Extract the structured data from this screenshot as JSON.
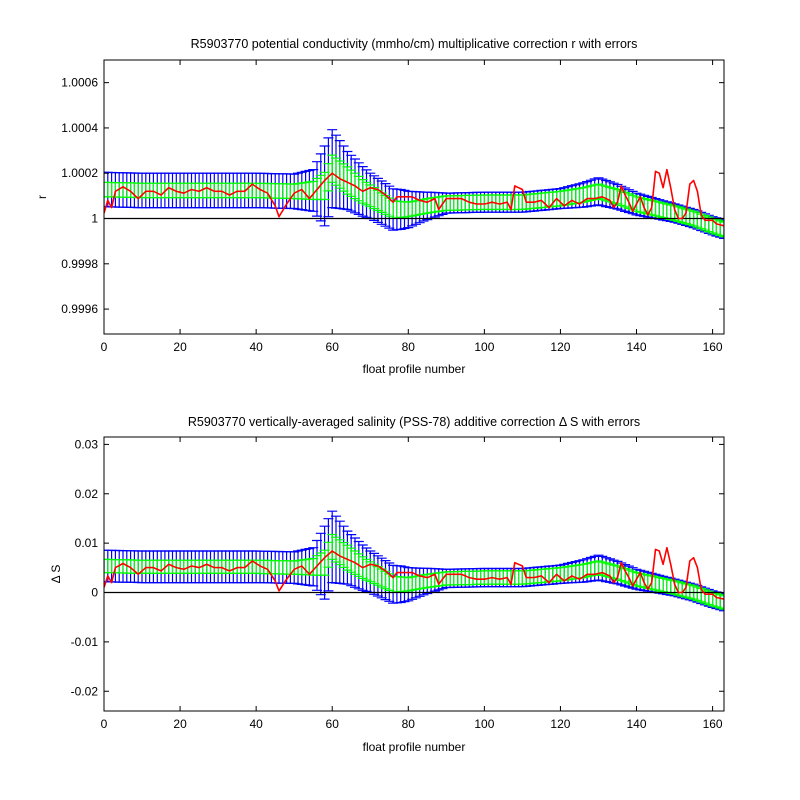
{
  "colors": {
    "outer_error": "#0000ff",
    "inner_error": "#00ff00",
    "correction_line": "#ff0000",
    "zero_line": "#000000",
    "axes": "#000000",
    "background": "#ffffff"
  },
  "chart_data": [
    {
      "type": "line",
      "title": "R5903770 potential conductivity (mmho/cm) multiplicative correction r with errors",
      "xlabel": "float profile number",
      "ylabel": "r",
      "xlim": [
        0,
        163
      ],
      "ylim": [
        0.99949,
        1.0007
      ],
      "xticks": [
        0,
        20,
        40,
        60,
        80,
        100,
        120,
        140,
        160
      ],
      "xtick_labels": [
        "0",
        "20",
        "40",
        "60",
        "80",
        "100",
        "120",
        "140",
        "160"
      ],
      "yticks": [
        0.9996,
        0.9998,
        1.0,
        1.0002,
        1.0004,
        1.0006
      ],
      "ytick_labels": [
        "0.9996",
        "0.9998",
        "1",
        "1.0002",
        "1.0004",
        "1.0006"
      ],
      "reference_line": 1.0,
      "grid": false,
      "legend": "none",
      "mapping": {
        "offset": 1.0,
        "scale": 4e-05
      },
      "fit_knots": [
        [
          0,
          3.2
        ],
        [
          10,
          3.1
        ],
        [
          20,
          3.1
        ],
        [
          30,
          3.1
        ],
        [
          40,
          3.1
        ],
        [
          50,
          3.0
        ],
        [
          55,
          3.1
        ],
        [
          58,
          3.6
        ],
        [
          60,
          5.5
        ],
        [
          64,
          4.2
        ],
        [
          68,
          3.0
        ],
        [
          72,
          2.0
        ],
        [
          76,
          1.0
        ],
        [
          80,
          1.0
        ],
        [
          85,
          1.4
        ],
        [
          90,
          1.7
        ],
        [
          100,
          1.8
        ],
        [
          110,
          1.8
        ],
        [
          120,
          2.2
        ],
        [
          126,
          2.6
        ],
        [
          130,
          3.0
        ],
        [
          135,
          2.4
        ],
        [
          140,
          1.6
        ],
        [
          145,
          1.1
        ],
        [
          150,
          0.6
        ],
        [
          155,
          0.0
        ],
        [
          160,
          -0.8
        ],
        [
          163,
          -1.2
        ]
      ],
      "inner_err_knots": [
        [
          0,
          0.8
        ],
        [
          50,
          0.8
        ],
        [
          55,
          1.0
        ],
        [
          58,
          1.5
        ],
        [
          60,
          1.5
        ],
        [
          64,
          1.5
        ],
        [
          70,
          1.2
        ],
        [
          80,
          0.8
        ],
        [
          120,
          0.8
        ],
        [
          163,
          0.8
        ]
      ],
      "outer_err_knots": [
        [
          0,
          1.9
        ],
        [
          50,
          1.9
        ],
        [
          55,
          2.3
        ],
        [
          58,
          4.4
        ],
        [
          60,
          4.3
        ],
        [
          64,
          3.2
        ],
        [
          70,
          2.5
        ],
        [
          78,
          2.2
        ],
        [
          84,
          1.6
        ],
        [
          90,
          1.1
        ],
        [
          120,
          1.1
        ],
        [
          130,
          1.5
        ],
        [
          140,
          1.2
        ],
        [
          150,
          1.0
        ],
        [
          163,
          1.0
        ]
      ],
      "obs_knots": [
        [
          0,
          0.6
        ],
        [
          1,
          2.0
        ],
        [
          2,
          1.2
        ],
        [
          3,
          3.0
        ],
        [
          5,
          3.5
        ],
        [
          7,
          3.0
        ],
        [
          9,
          2.2
        ],
        [
          11,
          3.0
        ],
        [
          13,
          3.0
        ],
        [
          15,
          2.6
        ],
        [
          17,
          3.4
        ],
        [
          19,
          3.0
        ],
        [
          21,
          2.8
        ],
        [
          23,
          3.2
        ],
        [
          25,
          3.0
        ],
        [
          27,
          3.4
        ],
        [
          29,
          3.0
        ],
        [
          31,
          3.0
        ],
        [
          33,
          2.6
        ],
        [
          35,
          3.0
        ],
        [
          37,
          3.0
        ],
        [
          39,
          3.8
        ],
        [
          41,
          3.2
        ],
        [
          43,
          2.8
        ],
        [
          45,
          1.4
        ],
        [
          46,
          0.2
        ],
        [
          48,
          1.6
        ],
        [
          50,
          2.8
        ],
        [
          52,
          3.2
        ],
        [
          54,
          2.2
        ],
        [
          56,
          3.2
        ],
        [
          58,
          4.2
        ],
        [
          60,
          5.0
        ],
        [
          62,
          4.4
        ],
        [
          64,
          4.0
        ],
        [
          66,
          3.6
        ],
        [
          68,
          3.0
        ],
        [
          70,
          3.4
        ],
        [
          72,
          3.2
        ],
        [
          74,
          2.6
        ],
        [
          76,
          1.8
        ],
        [
          77,
          2.4
        ],
        [
          79,
          2.4
        ],
        [
          81,
          2.4
        ],
        [
          83,
          2.0
        ],
        [
          85,
          1.8
        ],
        [
          87,
          2.2
        ],
        [
          88,
          1.0
        ],
        [
          90,
          2.2
        ],
        [
          92,
          2.2
        ],
        [
          94,
          2.2
        ],
        [
          96,
          1.8
        ],
        [
          98,
          1.6
        ],
        [
          100,
          1.6
        ],
        [
          102,
          1.8
        ],
        [
          104,
          1.6
        ],
        [
          106,
          1.8
        ],
        [
          107,
          1.0
        ],
        [
          108,
          3.6
        ],
        [
          110,
          3.2
        ],
        [
          111,
          1.8
        ],
        [
          113,
          1.8
        ],
        [
          115,
          2.0
        ],
        [
          117,
          1.2
        ],
        [
          119,
          2.2
        ],
        [
          121,
          1.4
        ],
        [
          123,
          2.0
        ],
        [
          125,
          1.6
        ],
        [
          127,
          2.2
        ],
        [
          129,
          2.2
        ],
        [
          131,
          2.4
        ],
        [
          133,
          2.0
        ],
        [
          134,
          1.2
        ],
        [
          135,
          1.8
        ],
        [
          136,
          3.6
        ],
        [
          137,
          2.6
        ],
        [
          138,
          1.8
        ],
        [
          139,
          0.8
        ],
        [
          141,
          2.4
        ],
        [
          142,
          1.2
        ],
        [
          143,
          0.4
        ],
        [
          144,
          1.2
        ],
        [
          145,
          5.2
        ],
        [
          146,
          5.0
        ],
        [
          147,
          3.4
        ],
        [
          148,
          5.4
        ],
        [
          149,
          3.4
        ],
        [
          150,
          1.0
        ],
        [
          151,
          0.0
        ],
        [
          152,
          0.0
        ],
        [
          153,
          0.6
        ],
        [
          154,
          3.8
        ],
        [
          155,
          4.2
        ],
        [
          156,
          3.0
        ],
        [
          157,
          0.4
        ],
        [
          158,
          -0.2
        ],
        [
          159,
          -0.2
        ],
        [
          160,
          -0.2
        ],
        [
          161,
          -0.6
        ],
        [
          162,
          -0.7
        ],
        [
          163,
          -0.8
        ]
      ]
    },
    {
      "type": "line",
      "title": "R5903770 vertically-averaged salinity (PSS-78) additive correction Δ S with errors",
      "xlabel": "float profile number",
      "ylabel": "Δ S",
      "xlim": [
        0,
        163
      ],
      "ylim": [
        -0.024,
        0.0315
      ],
      "xticks": [
        0,
        20,
        40,
        60,
        80,
        100,
        120,
        140,
        160
      ],
      "xtick_labels": [
        "0",
        "20",
        "40",
        "60",
        "80",
        "100",
        "120",
        "140",
        "160"
      ],
      "yticks": [
        -0.02,
        -0.01,
        0.0,
        0.01,
        0.02,
        0.03
      ],
      "ytick_labels": [
        "-0.02",
        "-0.01",
        "0",
        "0.01",
        "0.02",
        "0.03"
      ],
      "reference_line": 0.0,
      "grid": false,
      "legend": "none",
      "mapping": {
        "offset": 0.0,
        "scale": 0.00168
      },
      "fit_knots": [
        [
          0,
          3.2
        ],
        [
          10,
          3.1
        ],
        [
          20,
          3.1
        ],
        [
          30,
          3.1
        ],
        [
          40,
          3.1
        ],
        [
          50,
          3.0
        ],
        [
          55,
          3.1
        ],
        [
          58,
          3.6
        ],
        [
          60,
          5.5
        ],
        [
          64,
          4.2
        ],
        [
          68,
          3.0
        ],
        [
          72,
          2.0
        ],
        [
          76,
          1.0
        ],
        [
          80,
          1.0
        ],
        [
          85,
          1.4
        ],
        [
          90,
          1.7
        ],
        [
          100,
          1.8
        ],
        [
          110,
          1.8
        ],
        [
          120,
          2.2
        ],
        [
          126,
          2.6
        ],
        [
          130,
          3.0
        ],
        [
          135,
          2.4
        ],
        [
          140,
          1.6
        ],
        [
          145,
          1.1
        ],
        [
          150,
          0.6
        ],
        [
          155,
          0.0
        ],
        [
          160,
          -0.8
        ],
        [
          163,
          -1.2
        ]
      ],
      "inner_err_knots": [
        [
          0,
          0.8
        ],
        [
          50,
          0.8
        ],
        [
          55,
          1.0
        ],
        [
          58,
          1.5
        ],
        [
          60,
          1.5
        ],
        [
          64,
          1.5
        ],
        [
          70,
          1.2
        ],
        [
          80,
          0.8
        ],
        [
          120,
          0.8
        ],
        [
          163,
          0.8
        ]
      ],
      "outer_err_knots": [
        [
          0,
          1.9
        ],
        [
          50,
          1.9
        ],
        [
          55,
          2.3
        ],
        [
          58,
          4.4
        ],
        [
          60,
          4.3
        ],
        [
          64,
          3.2
        ],
        [
          70,
          2.5
        ],
        [
          78,
          2.2
        ],
        [
          84,
          1.6
        ],
        [
          90,
          1.1
        ],
        [
          120,
          1.1
        ],
        [
          130,
          1.5
        ],
        [
          140,
          1.2
        ],
        [
          150,
          1.0
        ],
        [
          163,
          1.0
        ]
      ],
      "obs_knots": [
        [
          0,
          0.6
        ],
        [
          1,
          2.0
        ],
        [
          2,
          1.2
        ],
        [
          3,
          3.0
        ],
        [
          5,
          3.5
        ],
        [
          7,
          3.0
        ],
        [
          9,
          2.2
        ],
        [
          11,
          3.0
        ],
        [
          13,
          3.0
        ],
        [
          15,
          2.6
        ],
        [
          17,
          3.4
        ],
        [
          19,
          3.0
        ],
        [
          21,
          2.8
        ],
        [
          23,
          3.2
        ],
        [
          25,
          3.0
        ],
        [
          27,
          3.4
        ],
        [
          29,
          3.0
        ],
        [
          31,
          3.0
        ],
        [
          33,
          2.6
        ],
        [
          35,
          3.0
        ],
        [
          37,
          3.0
        ],
        [
          39,
          3.8
        ],
        [
          41,
          3.2
        ],
        [
          43,
          2.8
        ],
        [
          45,
          1.4
        ],
        [
          46,
          0.2
        ],
        [
          48,
          1.6
        ],
        [
          50,
          2.8
        ],
        [
          52,
          3.2
        ],
        [
          54,
          2.2
        ],
        [
          56,
          3.2
        ],
        [
          58,
          4.2
        ],
        [
          60,
          5.0
        ],
        [
          62,
          4.4
        ],
        [
          64,
          4.0
        ],
        [
          66,
          3.6
        ],
        [
          68,
          3.0
        ],
        [
          70,
          3.4
        ],
        [
          72,
          3.2
        ],
        [
          74,
          2.6
        ],
        [
          76,
          1.8
        ],
        [
          77,
          2.4
        ],
        [
          79,
          2.4
        ],
        [
          81,
          2.4
        ],
        [
          83,
          2.0
        ],
        [
          85,
          1.8
        ],
        [
          87,
          2.2
        ],
        [
          88,
          1.0
        ],
        [
          90,
          2.2
        ],
        [
          92,
          2.2
        ],
        [
          94,
          2.2
        ],
        [
          96,
          1.8
        ],
        [
          98,
          1.6
        ],
        [
          100,
          1.6
        ],
        [
          102,
          1.8
        ],
        [
          104,
          1.6
        ],
        [
          106,
          1.8
        ],
        [
          107,
          1.0
        ],
        [
          108,
          3.6
        ],
        [
          110,
          3.2
        ],
        [
          111,
          1.8
        ],
        [
          113,
          1.8
        ],
        [
          115,
          2.0
        ],
        [
          117,
          1.2
        ],
        [
          119,
          2.2
        ],
        [
          121,
          1.4
        ],
        [
          123,
          2.0
        ],
        [
          125,
          1.6
        ],
        [
          127,
          2.2
        ],
        [
          129,
          2.2
        ],
        [
          131,
          2.4
        ],
        [
          133,
          2.0
        ],
        [
          134,
          1.2
        ],
        [
          135,
          1.8
        ],
        [
          136,
          3.6
        ],
        [
          137,
          2.6
        ],
        [
          138,
          1.8
        ],
        [
          139,
          0.8
        ],
        [
          141,
          2.4
        ],
        [
          142,
          1.2
        ],
        [
          143,
          0.4
        ],
        [
          144,
          1.2
        ],
        [
          145,
          5.2
        ],
        [
          146,
          5.0
        ],
        [
          147,
          3.4
        ],
        [
          148,
          5.4
        ],
        [
          149,
          3.4
        ],
        [
          150,
          1.0
        ],
        [
          151,
          0.0
        ],
        [
          152,
          0.0
        ],
        [
          153,
          0.6
        ],
        [
          154,
          3.8
        ],
        [
          155,
          4.2
        ],
        [
          156,
          3.0
        ],
        [
          157,
          0.4
        ],
        [
          158,
          -0.2
        ],
        [
          159,
          -0.2
        ],
        [
          160,
          -0.2
        ],
        [
          161,
          -0.6
        ],
        [
          162,
          -0.7
        ],
        [
          163,
          -0.8
        ]
      ]
    }
  ]
}
